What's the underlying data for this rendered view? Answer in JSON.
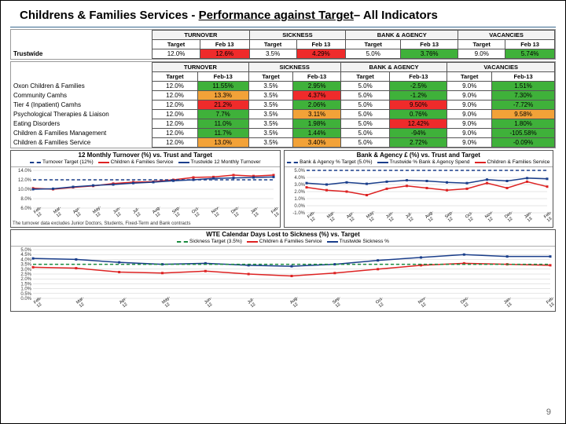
{
  "title_parts": [
    "Childrens & Families Services -  ",
    "Performance  against  Target",
    "– All Indicators"
  ],
  "pagenum": "9",
  "months": [
    "Feb-12",
    "Mar-12",
    "Apr-12",
    "May-12",
    "Jun-12",
    "Jul-12",
    "Aug-12",
    "Sep-12",
    "Oct-12",
    "Nov-12",
    "Dec-12",
    "Jan-13",
    "Feb-13"
  ],
  "groups": [
    "TURNOVER",
    "SICKNESS",
    "BANK & AGENCY",
    "VACANCIES"
  ],
  "subcols": [
    "Target",
    "Feb 13"
  ],
  "subcols2": [
    "Target",
    "Feb-13"
  ],
  "trustwide": {
    "label": "Trustwide",
    "vals": [
      {
        "t": "12.0%",
        "v": "12.6%",
        "c": "red"
      },
      {
        "t": "3.5%",
        "v": "4.29%",
        "c": "red"
      },
      {
        "t": "5.0%",
        "v": "3.76%",
        "c": "grn"
      },
      {
        "t": "9.0%",
        "v": "5.74%",
        "c": "grn"
      }
    ]
  },
  "divisions": [
    {
      "label": "Oxon Children & Families",
      "vals": [
        [
          "12.0%",
          "11.55%",
          "grn"
        ],
        [
          "3.5%",
          "2.95%",
          "grn"
        ],
        [
          "5.0%",
          "-2.5%",
          "grn"
        ],
        [
          "9.0%",
          "1.51%",
          "grn"
        ]
      ]
    },
    {
      "label": "Community Camhs",
      "vals": [
        [
          "12.0%",
          "13.3%",
          "amb"
        ],
        [
          "3.5%",
          "4.37%",
          "red"
        ],
        [
          "5.0%",
          "-1.2%",
          "grn"
        ],
        [
          "9.0%",
          "7.30%",
          "grn"
        ]
      ]
    },
    {
      "label": "Tier 4 (Inpatient) Camhs",
      "vals": [
        [
          "12.0%",
          "21.2%",
          "red"
        ],
        [
          "3.5%",
          "2.06%",
          "grn"
        ],
        [
          "5.0%",
          "9.50%",
          "red"
        ],
        [
          "9.0%",
          "-7.72%",
          "grn"
        ]
      ]
    },
    {
      "label": "Psychological Therapies & Liaison",
      "vals": [
        [
          "12.0%",
          "7.7%",
          "grn"
        ],
        [
          "3.5%",
          "3.11%",
          "amb"
        ],
        [
          "5.0%",
          "0.76%",
          "grn"
        ],
        [
          "9.0%",
          "9.58%",
          "amb"
        ]
      ]
    },
    {
      "label": "Eating Disorders",
      "vals": [
        [
          "12.0%",
          "11.0%",
          "grn"
        ],
        [
          "3.5%",
          "1.98%",
          "grn"
        ],
        [
          "5.0%",
          "12.42%",
          "red"
        ],
        [
          "9.0%",
          "1.80%",
          "grn"
        ]
      ]
    },
    {
      "label": "Children & Families Management",
      "vals": [
        [
          "12.0%",
          "11.7%",
          "grn"
        ],
        [
          "3.5%",
          "1.44%",
          "grn"
        ],
        [
          "5.0%",
          "-94%",
          "grn"
        ],
        [
          "9.0%",
          "-105.58%",
          "grn"
        ]
      ]
    },
    {
      "label": "Children & Families Service",
      "vals": [
        [
          "12.0%",
          "13.0%",
          "amb"
        ],
        [
          "3.5%",
          "3.40%",
          "amb"
        ],
        [
          "5.0%",
          "2.72%",
          "grn"
        ],
        [
          "9.0%",
          "-0.09%",
          "grn"
        ]
      ]
    }
  ],
  "chart_turnover": {
    "title": "12 Monthly Turnover (%) vs. Trust and Target",
    "legend": [
      {
        "label": "Turnover Target (12%)",
        "color": "#1a3e8b",
        "dash": true
      },
      {
        "label": "Children & Families Service",
        "color": "#d22",
        "dash": false
      },
      {
        "label": "Trustwide 12 Monthly Turnover",
        "color": "#1a3e8b",
        "dash": false
      }
    ],
    "caption": "The turnover data excludes Junior Doctors, Students, Fixed-Term and Bank contracts",
    "y_ticks": [
      "14.0%",
      "12.0%",
      "10.0%",
      "8.0%",
      "6.0%"
    ],
    "y_min": 6,
    "y_max": 14,
    "series": [
      {
        "color": "#d22",
        "dash": false,
        "points": [
          10.2,
          10.0,
          10.4,
          10.7,
          11.2,
          11.5,
          11.6,
          12.0,
          12.5,
          12.6,
          13.0,
          12.8,
          13.0
        ]
      },
      {
        "color": "#1a3e8b",
        "dash": false,
        "points": [
          10.0,
          10.1,
          10.5,
          10.8,
          11.0,
          11.3,
          11.5,
          11.8,
          12.0,
          12.3,
          12.4,
          12.5,
          12.6
        ]
      },
      {
        "color": "#1a3e8b",
        "dash": true,
        "points": [
          12,
          12,
          12,
          12,
          12,
          12,
          12,
          12,
          12,
          12,
          12,
          12,
          12
        ]
      }
    ]
  },
  "chart_bank": {
    "title": "Bank & Agency £ (%) vs. Trust and Target",
    "legend": [
      {
        "label": "Bank & Agency % Target (5.0%)",
        "color": "#1a3e8b",
        "dash": true
      },
      {
        "label": "Trustwide % Bank & Agency Spend",
        "color": "#1a3e8b",
        "dash": false
      },
      {
        "label": "Children & Families Service",
        "color": "#d22",
        "dash": false
      }
    ],
    "y_ticks": [
      "5.0%",
      "4.0%",
      "3.0%",
      "2.0%",
      "1.0%",
      "0.0%",
      "-1.0%"
    ],
    "y_min": -1,
    "y_max": 5,
    "series": [
      {
        "color": "#d22",
        "dash": false,
        "points": [
          2.6,
          2.2,
          2.0,
          1.5,
          2.4,
          2.8,
          2.5,
          2.2,
          2.4,
          3.2,
          2.5,
          3.4,
          2.7
        ]
      },
      {
        "color": "#1a3e8b",
        "dash": false,
        "points": [
          3.2,
          3.0,
          3.3,
          3.1,
          3.4,
          3.6,
          3.5,
          3.3,
          3.2,
          3.7,
          3.5,
          3.9,
          3.8
        ]
      },
      {
        "color": "#1a3e8b",
        "dash": true,
        "points": [
          5,
          5,
          5,
          5,
          5,
          5,
          5,
          5,
          5,
          5,
          5,
          5,
          5
        ]
      }
    ]
  },
  "chart_sick": {
    "title": "WTE Calendar Days Lost to Sickness (%) vs. Target",
    "legend": [
      {
        "label": "Sickness Target (3.5%)",
        "color": "#1a8b3e",
        "dash": true
      },
      {
        "label": "Children & Families Service",
        "color": "#d22",
        "dash": false
      },
      {
        "label": "Trustwide Sickness %",
        "color": "#1a3e8b",
        "dash": false
      }
    ],
    "y_ticks": [
      "5.0%",
      "4.5%",
      "4.0%",
      "3.5%",
      "3.0%",
      "2.5%",
      "2.0%",
      "1.5%",
      "1.0%",
      "0.5%",
      "0.0%"
    ],
    "y_min": 0,
    "y_max": 5,
    "series": [
      {
        "color": "#d22",
        "dash": false,
        "points": [
          3.2,
          3.1,
          2.7,
          2.6,
          2.8,
          2.5,
          2.3,
          2.6,
          3.0,
          3.4,
          3.6,
          3.5,
          3.4
        ]
      },
      {
        "color": "#1a3e8b",
        "dash": false,
        "points": [
          4.1,
          4.0,
          3.7,
          3.5,
          3.6,
          3.4,
          3.3,
          3.5,
          3.9,
          4.2,
          4.5,
          4.3,
          4.3
        ]
      },
      {
        "color": "#1a8b3e",
        "dash": true,
        "points": [
          3.5,
          3.5,
          3.5,
          3.5,
          3.5,
          3.5,
          3.5,
          3.5,
          3.5,
          3.5,
          3.5,
          3.5,
          3.5
        ]
      }
    ]
  }
}
